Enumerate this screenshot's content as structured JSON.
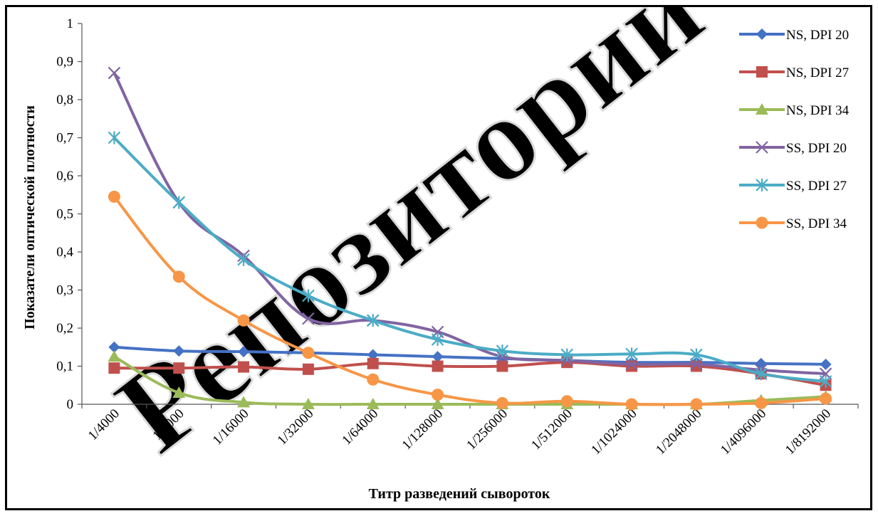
{
  "chart_data": {
    "type": "line",
    "title": "",
    "xlabel": "Титр разведений сывороток",
    "ylabel": "Показатели оптической плотности",
    "categories": [
      "1/4000",
      "1/8000",
      "1/16000",
      "1/32000",
      "1/64000",
      "1/128000",
      "1/256000",
      "1/512000",
      "1/1024000",
      "1/2048000",
      "1/4096000",
      "1/8192000"
    ],
    "ylim": [
      0,
      1
    ],
    "yticks": [
      0,
      0.1,
      0.2,
      0.3,
      0.4,
      0.5,
      0.6,
      0.7,
      0.8,
      0.9,
      1
    ],
    "ytick_labels": [
      "0",
      "0,1",
      "0,2",
      "0,3",
      "0,4",
      "0,5",
      "0,6",
      "0,7",
      "0,8",
      "0,9",
      "1"
    ],
    "grid": false,
    "legend_position": "right",
    "series": [
      {
        "name": "NS, DPI 20",
        "color": "#4472C4",
        "marker": "diamond",
        "values": [
          0.15,
          0.14,
          0.138,
          0.135,
          0.13,
          0.125,
          0.12,
          0.115,
          0.11,
          0.11,
          0.107,
          0.105
        ]
      },
      {
        "name": "NS, DPI 27",
        "color": "#C0504D",
        "marker": "square",
        "values": [
          0.095,
          0.095,
          0.098,
          0.092,
          0.107,
          0.1,
          0.1,
          0.11,
          0.1,
          0.1,
          0.08,
          0.05
        ]
      },
      {
        "name": "NS, DPI 34",
        "color": "#9BBB59",
        "marker": "triangle",
        "values": [
          0.125,
          0.03,
          0.005,
          0,
          0,
          0,
          0,
          0,
          0,
          0,
          0.01,
          0.02
        ]
      },
      {
        "name": "SS, DPI 20",
        "color": "#8064A2",
        "marker": "x",
        "values": [
          0.87,
          0.53,
          0.39,
          0.225,
          0.22,
          0.19,
          0.125,
          0.115,
          0.105,
          0.105,
          0.09,
          0.08
        ]
      },
      {
        "name": "SS, DPI 27",
        "color": "#4BACC6",
        "marker": "asterisk",
        "values": [
          0.7,
          0.53,
          0.38,
          0.285,
          0.22,
          0.17,
          0.14,
          0.13,
          0.132,
          0.13,
          0.08,
          0.06
        ]
      },
      {
        "name": "SS, DPI 34",
        "color": "#F79646",
        "marker": "circle",
        "values": [
          0.545,
          0.335,
          0.22,
          0.135,
          0.065,
          0.025,
          0.003,
          0.008,
          0.0,
          0.0,
          0.003,
          0.015
        ]
      }
    ]
  },
  "watermark": {
    "text": "Репозиторий",
    "color": "#d9d9d9"
  }
}
